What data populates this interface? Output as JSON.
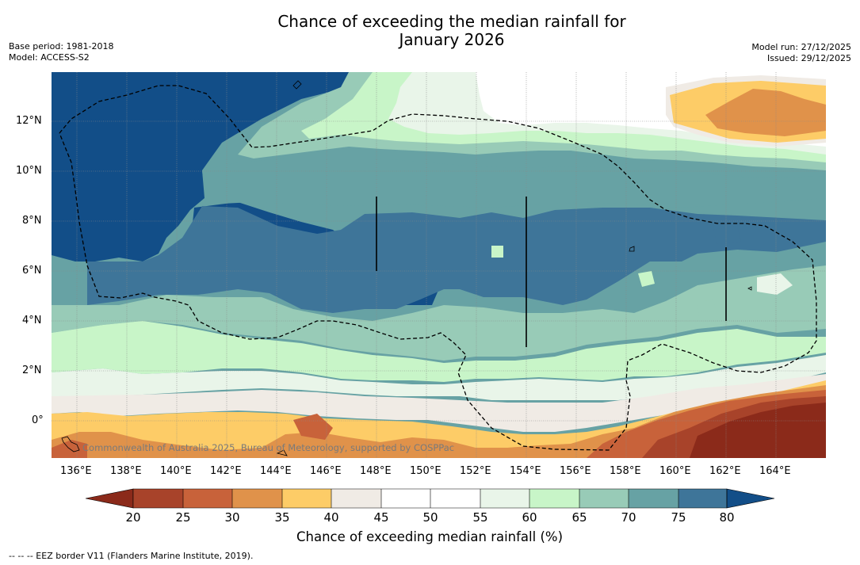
{
  "title_line1": "Chance of exceeding the median rainfall for",
  "title_line2": "January 2026",
  "left_info": {
    "line1": "Base period: 1981-2018",
    "line2": "Model: ACCESS-S2"
  },
  "right_info": {
    "line1": "Model run: 27/12/2025",
    "line2": "Issued: 29/12/2025"
  },
  "copyright": "Commonwealth of Australia 2025, Bureau of Meteorology, supported by COSPPac",
  "lon_labels": [
    "136°E",
    "138°E",
    "140°E",
    "142°E",
    "144°E",
    "146°E",
    "148°E",
    "150°E",
    "152°E",
    "154°E",
    "156°E",
    "158°E",
    "160°E",
    "162°E",
    "164°E"
  ],
  "lat_labels": [
    "12°N",
    "10°N",
    "8°N",
    "6°N",
    "4°N",
    "2°N",
    "0°"
  ],
  "colorbar": {
    "ticks": [
      "20",
      "25",
      "30",
      "35",
      "40",
      "45",
      "50",
      "55",
      "60",
      "65",
      "70",
      "75",
      "80"
    ],
    "colors": [
      "#8b2a1a",
      "#a8432a",
      "#c8623a",
      "#e0924a",
      "#fdcc67",
      "#f0ebe5",
      "#ffffff",
      "#ffffff",
      "#e9f5e9",
      "#c8f5c8",
      "#98cbb7",
      "#67a2a4",
      "#3e7599",
      "#124e88"
    ],
    "label": "Chance of exceeding median rainfall (%)"
  },
  "footer": "-- -- -- EEZ border V11 (Flanders Marine Institute, 2019)."
}
